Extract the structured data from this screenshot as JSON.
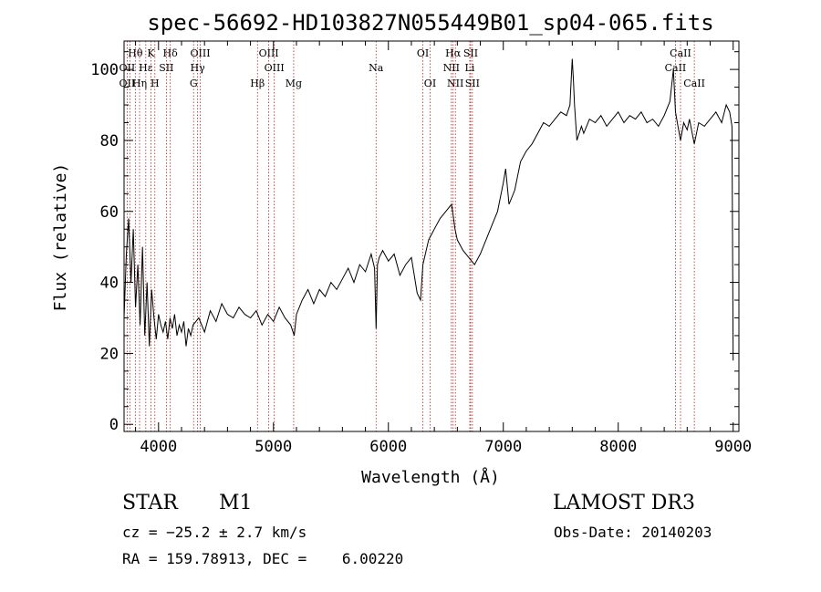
{
  "header": {
    "title": "spec-56692-HD103827N055449B01_sp04-065.fits"
  },
  "chart_data": {
    "type": "line",
    "title": "spec-56692-HD103827N055449B01_sp04-065.fits",
    "xlabel": "Wavelength (Å)",
    "ylabel": "Flux (relative)",
    "xlim": [
      3700,
      9050
    ],
    "ylim": [
      -2,
      108
    ],
    "xticks": [
      4000,
      5000,
      6000,
      7000,
      8000,
      9000
    ],
    "yticks": [
      0,
      20,
      40,
      60,
      80,
      100
    ],
    "grid": false,
    "legend": "none",
    "series": [
      {
        "color": "#000000",
        "x": [
          3700,
          3720,
          3740,
          3760,
          3780,
          3800,
          3820,
          3840,
          3860,
          3880,
          3900,
          3920,
          3940,
          3960,
          3980,
          4000,
          4020,
          4040,
          4060,
          4080,
          4100,
          4120,
          4140,
          4160,
          4180,
          4200,
          4220,
          4240,
          4260,
          4280,
          4300,
          4350,
          4400,
          4450,
          4500,
          4550,
          4600,
          4650,
          4700,
          4750,
          4800,
          4850,
          4900,
          4950,
          5000,
          5050,
          5100,
          5150,
          5180,
          5200,
          5250,
          5300,
          5350,
          5400,
          5450,
          5500,
          5550,
          5600,
          5650,
          5700,
          5750,
          5800,
          5850,
          5880,
          5893,
          5905,
          5920,
          5950,
          6000,
          6050,
          6100,
          6150,
          6200,
          6250,
          6280,
          6300,
          6350,
          6400,
          6450,
          6500,
          6550,
          6563,
          6580,
          6600,
          6650,
          6700,
          6750,
          6800,
          6850,
          6900,
          6950,
          7000,
          7020,
          7050,
          7100,
          7150,
          7200,
          7250,
          7300,
          7350,
          7400,
          7450,
          7500,
          7550,
          7580,
          7600,
          7610,
          7620,
          7640,
          7680,
          7700,
          7750,
          7800,
          7850,
          7900,
          7950,
          8000,
          8050,
          8100,
          8150,
          8200,
          8250,
          8300,
          8350,
          8400,
          8450,
          8480,
          8498,
          8520,
          8542,
          8570,
          8600,
          8620,
          8662,
          8700,
          8750,
          8800,
          8850,
          8900,
          8940,
          8970,
          8990,
          9000
        ],
        "y": [
          30,
          48,
          58,
          40,
          55,
          33,
          45,
          28,
          50,
          25,
          40,
          22,
          38,
          30,
          24,
          31,
          28,
          26,
          29,
          24,
          30,
          27,
          31,
          25,
          28,
          26,
          29,
          22,
          27,
          25,
          28,
          30,
          26,
          32,
          29,
          34,
          31,
          30,
          33,
          31,
          30,
          32,
          28,
          31,
          29,
          33,
          30,
          28,
          25,
          31,
          35,
          38,
          34,
          38,
          36,
          40,
          38,
          41,
          44,
          40,
          45,
          43,
          48,
          44,
          27,
          45,
          47,
          49,
          46,
          48,
          42,
          45,
          47,
          37,
          35,
          45,
          52,
          55,
          58,
          60,
          62,
          59,
          55,
          52,
          49,
          47,
          45,
          48,
          52,
          56,
          60,
          68,
          72,
          62,
          66,
          74,
          77,
          79,
          82,
          85,
          84,
          86,
          88,
          87,
          90,
          103,
          97,
          90,
          80,
          84,
          82,
          86,
          85,
          87,
          84,
          86,
          88,
          85,
          87,
          86,
          88,
          85,
          86,
          84,
          87,
          91,
          100,
          88,
          84,
          80,
          85,
          83,
          86,
          79,
          85,
          84,
          86,
          88,
          85,
          90,
          88,
          84,
          18
        ]
      }
    ],
    "line_labels": [
      {
        "text": "Hθ",
        "row": 1,
        "x": 3798
      },
      {
        "text": "K",
        "row": 1,
        "x": 3934
      },
      {
        "text": "Hδ",
        "row": 1,
        "x": 4102
      },
      {
        "text": "OIII",
        "row": 1,
        "x": 4363
      },
      {
        "text": "OIII",
        "row": 1,
        "x": 4959
      },
      {
        "text": "OI",
        "row": 1,
        "x": 6300
      },
      {
        "text": "Hα",
        "row": 1,
        "x": 6563
      },
      {
        "text": "SII",
        "row": 1,
        "x": 6716
      },
      {
        "text": "CaII",
        "row": 1,
        "x": 8542
      },
      {
        "text": "OII",
        "row": 2,
        "x": 3727
      },
      {
        "text": "Hε",
        "row": 2,
        "x": 3889
      },
      {
        "text": "SII",
        "row": 2,
        "x": 4068
      },
      {
        "text": "Hγ",
        "row": 2,
        "x": 4340
      },
      {
        "text": "OIII",
        "row": 2,
        "x": 5007
      },
      {
        "text": "Na",
        "row": 2,
        "x": 5893
      },
      {
        "text": "NII",
        "row": 2,
        "x": 6548
      },
      {
        "text": "Li",
        "row": 2,
        "x": 6708
      },
      {
        "text": "CaII",
        "row": 2,
        "x": 8498
      },
      {
        "text": "OII",
        "row": 3,
        "x": 3727
      },
      {
        "text": "Hη",
        "row": 3,
        "x": 3835
      },
      {
        "text": "H",
        "row": 3,
        "x": 3968
      },
      {
        "text": "G",
        "row": 3,
        "x": 4305
      },
      {
        "text": "Hβ",
        "row": 3,
        "x": 4861
      },
      {
        "text": "Mg",
        "row": 3,
        "x": 5176
      },
      {
        "text": "OI",
        "row": 3,
        "x": 6363
      },
      {
        "text": "NII",
        "row": 3,
        "x": 6583
      },
      {
        "text": "SII",
        "row": 3,
        "x": 6731
      },
      {
        "text": "CaII",
        "row": 3,
        "x": 8662
      }
    ],
    "marker_lines": [
      3727,
      3750,
      3798,
      3835,
      3889,
      3934,
      3968,
      4068,
      4102,
      4305,
      4340,
      4363,
      4861,
      4959,
      5007,
      5176,
      5893,
      6300,
      6363,
      6548,
      6563,
      6583,
      6708,
      6716,
      6731,
      8498,
      8542,
      8662
    ]
  },
  "info": {
    "class_label": "STAR",
    "subclass": "M1",
    "cz": "cz = −25.2 ± 2.7 km/s",
    "coords": "RA = 159.78913, DEC =    6.00220",
    "survey": "LAMOST DR3",
    "obs_date": "Obs-Date: 20140203"
  }
}
